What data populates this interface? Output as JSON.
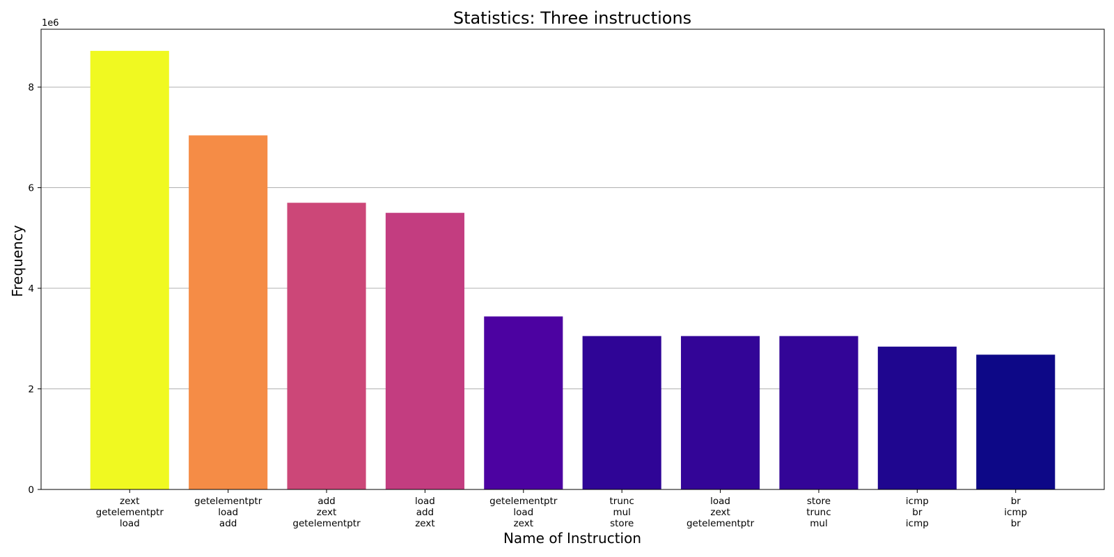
{
  "chart_data": {
    "type": "bar",
    "title": "Statistics: Three instructions",
    "xlabel": "Name of Instruction",
    "ylabel": "Frequency",
    "y_offset_label": "1e6",
    "ylim": [
      0,
      9.15
    ],
    "yticks": [
      0,
      2,
      4,
      6,
      8
    ],
    "ytick_labels": [
      "0",
      "2",
      "4",
      "6",
      "8"
    ],
    "grid": "horizontal",
    "categories": [
      [
        "zext",
        "getelementptr",
        "load"
      ],
      [
        "getelementptr",
        "load",
        "add"
      ],
      [
        "add",
        "zext",
        "getelementptr"
      ],
      [
        "load",
        "add",
        "zext"
      ],
      [
        "getelementptr",
        "load",
        "zext"
      ],
      [
        "trunc",
        "mul",
        "store"
      ],
      [
        "load",
        "zext",
        "getelementptr"
      ],
      [
        "store",
        "trunc",
        "mul"
      ],
      [
        "icmp",
        "br",
        "icmp"
      ],
      [
        "br",
        "icmp",
        "br"
      ]
    ],
    "values": [
      8.72,
      7.04,
      5.7,
      5.5,
      3.44,
      3.05,
      3.05,
      3.05,
      2.84,
      2.68
    ],
    "colors": [
      "#f0f921",
      "#f58c46",
      "#cc4778",
      "#c33d80",
      "#4c02a1",
      "#2f0596",
      "#330597",
      "#330597",
      "#1f068f",
      "#0d0887"
    ]
  }
}
